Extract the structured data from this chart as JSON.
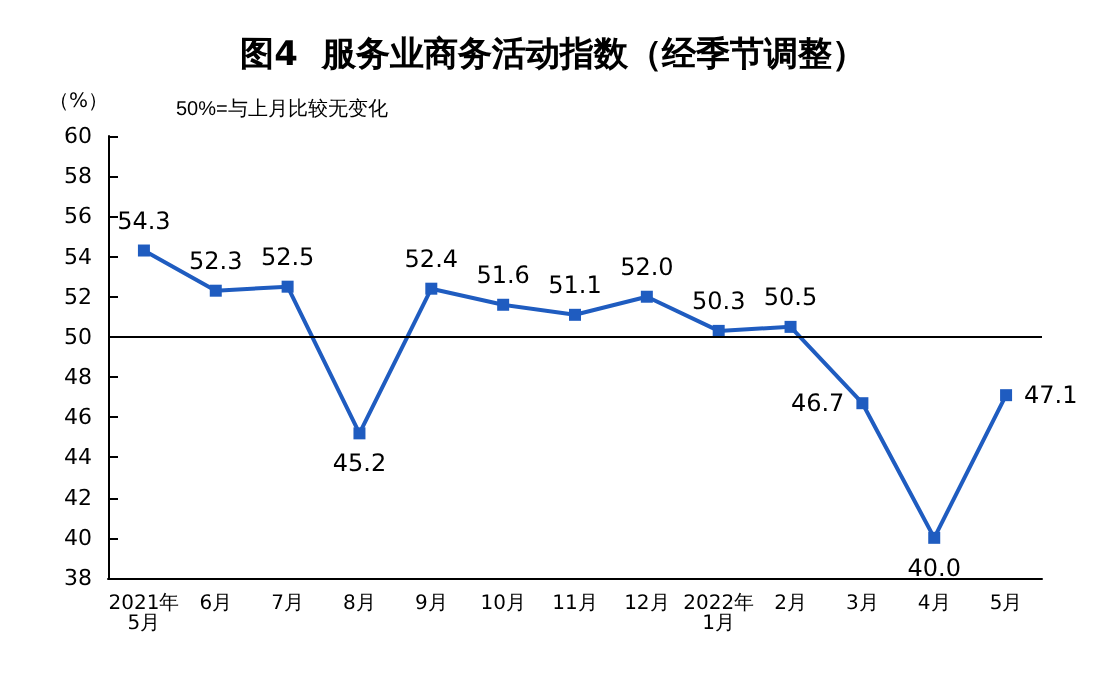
{
  "chart_data": {
    "type": "line",
    "title": "图4  服务业商务活动指数（经季节调整）",
    "ylabel": "（%）",
    "annotations": [
      "50%=与上月比较无变化"
    ],
    "categories": [
      "2021年\n5月",
      "6月",
      "7月",
      "8月",
      "9月",
      "10月",
      "11月",
      "12月",
      "2022年\n1月",
      "2月",
      "3月",
      "4月",
      "5月"
    ],
    "series": [
      {
        "color": "#1f5cc0",
        "values": [
          54.3,
          52.3,
          52.5,
          45.2,
          52.4,
          51.6,
          51.1,
          52.0,
          50.3,
          50.5,
          46.7,
          40.0,
          47.1
        ],
        "value_labels": [
          "54.3",
          "52.3",
          "52.5",
          "45.2",
          "52.4",
          "51.6",
          "51.1",
          "52.0",
          "50.3",
          "50.5",
          "46.7",
          "40.0",
          "47.1"
        ]
      }
    ],
    "ylim": [
      38,
      60
    ],
    "yticks": [
      38,
      40,
      42,
      44,
      46,
      48,
      50,
      52,
      54,
      56,
      58,
      60
    ],
    "ref_lines": [
      {
        "axis": "y",
        "value": 50,
        "color": "#000000",
        "line_style": "solid"
      }
    ],
    "marker": "square",
    "line_style": "solid",
    "grid": false
  }
}
